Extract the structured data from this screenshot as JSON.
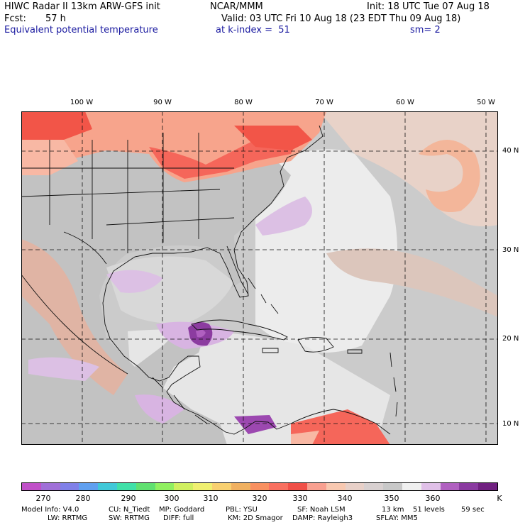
{
  "header": {
    "title": "HIWC Radar II 13km ARW-GFS init",
    "org": "NCAR/MMM",
    "init": "Init: 18 UTC Tue 07 Aug 18",
    "fcst_label": "Fcst:",
    "fcst_value": "57 h",
    "valid": "Valid: 03 UTC Fri 10 Aug 18 (23 EDT Thu 09 Aug 18)",
    "field": "Equivalent potential temperature",
    "level": "at k-index =  51",
    "smooth": "sm= 2"
  },
  "axes": {
    "longitudes": [
      "100 W",
      "90 W",
      "80 W",
      "70 W",
      "60 W",
      "50 W"
    ],
    "latitudes": [
      "40 N",
      "30 N",
      "20 N",
      "10 N"
    ]
  },
  "colorbar": {
    "ticks": [
      "270",
      "280",
      "290",
      "300",
      "310",
      "320",
      "330",
      "340",
      "350",
      "360"
    ],
    "unit": "K",
    "colors": [
      "#c050c8",
      "#a070d8",
      "#8080e8",
      "#60a0f0",
      "#40c8d8",
      "#40e0a8",
      "#60e070",
      "#90f060",
      "#d0f060",
      "#f0f070",
      "#f8d070",
      "#f0b060",
      "#f89060",
      "#f87060",
      "#f05048",
      "#f8a090",
      "#f8c8b0",
      "#e8d0c8",
      "#d8d0d0",
      "#c8c8c8",
      "#f0f0f0",
      "#e0c0e8",
      "#b060c0",
      "#8a3aa0",
      "#702080"
    ]
  },
  "footer": {
    "model_info": "Model Info: V4.0",
    "cu": "CU: N_Tiedt",
    "mp": "MP: Goddard",
    "pbl": "PBL: YSU",
    "sf": "SF: Noah LSM",
    "res": "13 km",
    "levels": "51 levels",
    "dt": "59 sec",
    "lw": "LW: RRTMG",
    "sw": "SW: RRTMG",
    "diff": "DIFF: full",
    "km": "KM: 2D Smagor",
    "damp": "DAMP: Rayleigh3",
    "sflay": "SFLAY: MM5"
  }
}
